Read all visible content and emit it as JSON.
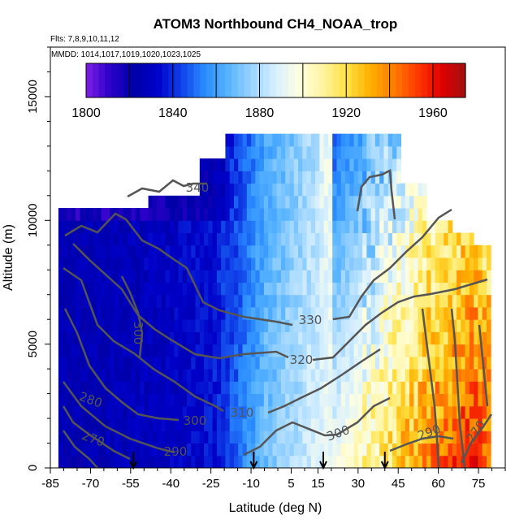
{
  "chart_data": {
    "type": "heatmap",
    "title": "ATOM3 Northbound CH4_NOAA_trop",
    "flights_label": "Flts: 7,8,9,10,11,12",
    "dates_label": "MMDD: 1014,1017,1019,1020,1023,1025",
    "xlabel": "Latitude (deg N)",
    "ylabel": "Altitude (m)",
    "xlim": [
      -85,
      85
    ],
    "ylim": [
      0,
      17000
    ],
    "x_ticks": [
      "-85",
      "-70",
      "-55",
      "-40",
      "-25",
      "-10",
      "5",
      "15",
      "30",
      "45",
      "60",
      "75"
    ],
    "x_tick_values": [
      -85,
      -70,
      -55,
      -40,
      -25,
      -10,
      5,
      15,
      30,
      45,
      60,
      75
    ],
    "y_ticks": [
      "0",
      "5000",
      "10000",
      "15000"
    ],
    "y_tick_values": [
      0,
      5000,
      10000,
      15000
    ],
    "colorbar": {
      "range": [
        1800,
        1975
      ],
      "ticks": [
        "1800",
        "1840",
        "1880",
        "1920",
        "1960"
      ],
      "tick_values": [
        1800,
        1840,
        1880,
        1920,
        1960
      ],
      "colors": [
        "#7f1fe6",
        "#2a00c8",
        "#0000a8",
        "#0000c8",
        "#1040e8",
        "#2a8cff",
        "#58b4ff",
        "#9cd4ff",
        "#d8f0ff",
        "#ffffe0",
        "#fff4a0",
        "#ffe040",
        "#ffb000",
        "#ff7a00",
        "#ff3800",
        "#e00000",
        "#a01010"
      ]
    },
    "contour_labels": [
      "340",
      "330",
      "320",
      "310",
      "300",
      "300",
      "300",
      "290",
      "290",
      "280",
      "270",
      "270"
    ],
    "arrow_latitudes": [
      -54,
      -9,
      17,
      40
    ],
    "field_profile": [
      {
        "lat": -83,
        "ch4": 1825
      },
      {
        "lat": -70,
        "ch4": 1826
      },
      {
        "lat": -55,
        "ch4": 1828
      },
      {
        "lat": -40,
        "ch4": 1830
      },
      {
        "lat": -25,
        "ch4": 1836
      },
      {
        "lat": -15,
        "ch4": 1850
      },
      {
        "lat": -5,
        "ch4": 1868
      },
      {
        "lat": 5,
        "ch4": 1878
      },
      {
        "lat": 15,
        "ch4": 1888
      },
      {
        "lat": 25,
        "ch4": 1900
      },
      {
        "lat": 35,
        "ch4": 1912
      },
      {
        "lat": 45,
        "ch4": 1925
      },
      {
        "lat": 55,
        "ch4": 1940
      },
      {
        "lat": 65,
        "ch4": 1948
      },
      {
        "lat": 72,
        "ch4": 1955
      },
      {
        "lat": 78,
        "ch4": 1945
      }
    ],
    "grid": false,
    "legend": "colorbar-top"
  }
}
